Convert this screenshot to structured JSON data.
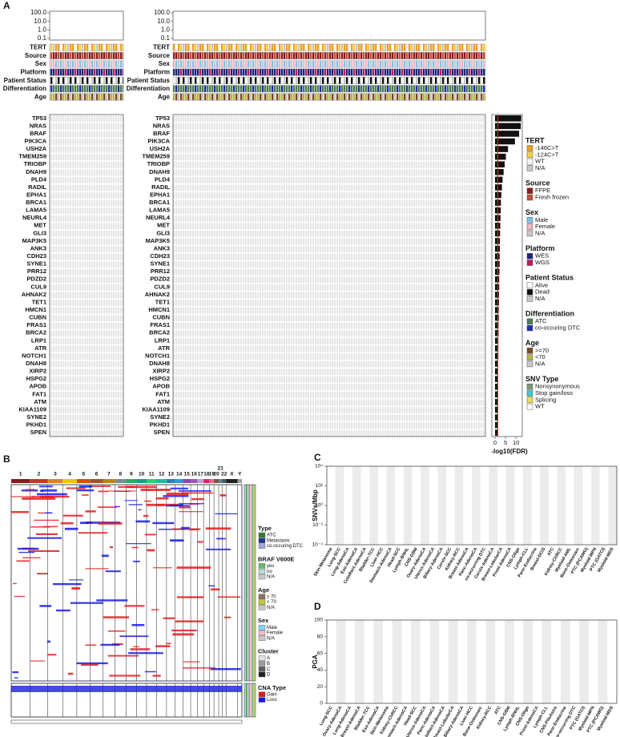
{
  "panel_labels": [
    "A",
    "B",
    "C",
    "D"
  ],
  "panel_a": {
    "top_ylim": [
      0.1,
      100
    ],
    "log_scale": true,
    "top_yticks": [
      {
        "value": 100,
        "label": "100.0"
      },
      {
        "value": 10,
        "label": "10.0"
      },
      {
        "value": 1,
        "label": "1.0"
      },
      {
        "value": 0.1,
        "label": "0.1"
      }
    ],
    "annotation_rows": [
      "TERT",
      "Source",
      "Sex",
      "Platform",
      "Patient Status",
      "Differentiation",
      "Age"
    ],
    "genes": [
      "TP53",
      "NRAS",
      "BRAF",
      "PIK3CA",
      "USH2A",
      "TMEM259",
      "TRIOBP",
      "DNAH9",
      "PLD4",
      "RADIL",
      "EPHA1",
      "BRCA1",
      "LAMA5",
      "NEURL4",
      "MET",
      "GLI3",
      "MAP3K5",
      "ANK3",
      "CDH23",
      "SYNE1",
      "PRR12",
      "PDZD2",
      "CUL9",
      "AHNAK2",
      "TET1",
      "HMCN1",
      "CUBN",
      "FRAS1",
      "BRCA2",
      "LRP1",
      "ATR",
      "NOTCH1",
      "DNAH8",
      "XIRP2",
      "HSPG2",
      "APOB",
      "FAT1",
      "ATM",
      "KIAA1109",
      "SYNE2",
      "PKHD1",
      "SPEN"
    ],
    "fdr": {
      "type": "bar",
      "xlabel": "-log10(FDR)",
      "color": "#111111",
      "threshold_color": "#d62728",
      "threshold": 1.3,
      "xlim": [
        0,
        13
      ],
      "xticks": [
        0,
        5,
        10
      ],
      "values": [
        12.5,
        12.3,
        11.5,
        9.5,
        6.2,
        5.2,
        4.6,
        4.1,
        3.6,
        3.3,
        3.0,
        2.8,
        2.7,
        2.6,
        2.5,
        2.4,
        2.3,
        2.3,
        2.2,
        2.2,
        2.1,
        2.0,
        2.0,
        1.9,
        1.9,
        1.8,
        1.8,
        1.7,
        1.7,
        1.6,
        1.6,
        1.6,
        1.5,
        1.5,
        1.5,
        1.4,
        1.4,
        1.4,
        1.3,
        1.3,
        1.2,
        1.2
      ]
    },
    "legend": [
      {
        "title": "TERT",
        "items": [
          {
            "label": "-146C>T",
            "color": "#f0a020"
          },
          {
            "label": "-124C>T",
            "color": "#f5d04a"
          },
          {
            "label": "WT",
            "color": "#ffffff"
          },
          {
            "label": "N/A",
            "color": "#c8c8c8"
          }
        ]
      },
      {
        "title": "Source",
        "items": [
          {
            "label": "FFPE",
            "color": "#8b1a1a"
          },
          {
            "label": "Fresh frozen",
            "color": "#c0503a"
          }
        ]
      },
      {
        "title": "Sex",
        "items": [
          {
            "label": "Male",
            "color": "#7ec3e6"
          },
          {
            "label": "Female",
            "color": "#f4b6c2"
          },
          {
            "label": "N/A",
            "color": "#c8c8c8"
          }
        ]
      },
      {
        "title": "Platform",
        "items": [
          {
            "label": "WES",
            "color": "#1a237e"
          },
          {
            "label": "WGS",
            "color": "#c2185b"
          }
        ]
      },
      {
        "title": "Patient Status",
        "items": [
          {
            "label": "Alive",
            "color": "#ffffff"
          },
          {
            "label": "Dead",
            "color": "#111111"
          },
          {
            "label": "N/A",
            "color": "#c8c8c8"
          }
        ]
      },
      {
        "title": "Differentiation",
        "items": [
          {
            "label": "ATC",
            "color": "#4e7d4e"
          },
          {
            "label": "co-occuring DTC",
            "color": "#1f2fb0"
          }
        ]
      },
      {
        "title": "Age",
        "items": [
          {
            "label": ">=70",
            "color": "#7a4a22"
          },
          {
            "label": "<70",
            "color": "#b7b34a"
          },
          {
            "label": "N/A",
            "color": "#c8c8c8"
          }
        ]
      },
      {
        "title": "SNV Type",
        "items": [
          {
            "label": "Nonsynonymous",
            "color": "#7a9a7a"
          },
          {
            "label": "Stop gain/loss",
            "color": "#3cc8d8"
          },
          {
            "label": "Splicing",
            "color": "#e8e050"
          },
          {
            "label": "WT",
            "color": "#ffffff"
          }
        ]
      }
    ]
  },
  "panel_b": {
    "chromosomes": [
      "1",
      "2",
      "3",
      "4",
      "5",
      "6",
      "7",
      "8",
      "9",
      "10",
      "11",
      "12",
      "13",
      "14",
      "15",
      "16",
      "17",
      "18",
      "19",
      "20",
      "21",
      "22",
      "X",
      "Y"
    ],
    "legend": [
      {
        "title": "Type",
        "items": [
          {
            "label": "ATC",
            "color": "#2e7d32"
          },
          {
            "label": "Metastasis",
            "color": "#283593"
          },
          {
            "label": "co-occuring DTC",
            "color": "#9fa8da"
          }
        ]
      },
      {
        "title": "BRAF V600E",
        "items": [
          {
            "label": "yes",
            "color": "#66bb6a"
          },
          {
            "label": "no",
            "color": "#b2dfdb"
          },
          {
            "label": "N/A",
            "color": "#c8c8c8"
          }
        ]
      },
      {
        "title": "Age",
        "items": [
          {
            "label": "≥ 70",
            "color": "#8d6e63"
          },
          {
            "label": "< 70",
            "color": "#c0ca33"
          },
          {
            "label": "N/A",
            "color": "#c8c8c8"
          }
        ]
      },
      {
        "title": "Sex",
        "items": [
          {
            "label": "Male",
            "color": "#81d4fa"
          },
          {
            "label": "Female",
            "color": "#f8bbd0"
          },
          {
            "label": "N/A",
            "color": "#c8c8c8"
          }
        ]
      },
      {
        "title": "Cluster",
        "items": [
          {
            "label": "A",
            "color": "#e0e0e0"
          },
          {
            "label": "B",
            "color": "#9e9e9e"
          },
          {
            "label": "C",
            "color": "#616161"
          },
          {
            "label": "D",
            "color": "#212121"
          }
        ]
      },
      {
        "title": "CNA Type",
        "items": [
          {
            "label": "Gain",
            "color": "#e41a1c"
          },
          {
            "label": "Loss",
            "color": "#1a1ae4"
          }
        ]
      }
    ]
  },
  "panel_c": {
    "ylabel": "SNVs/Mbp",
    "log_scale": true,
    "ylim": [
      0.0001,
      10000
    ],
    "yticks": [
      {
        "value": 10000,
        "label": "10⁴"
      },
      {
        "value": 100,
        "label": "10²"
      },
      {
        "value": 1,
        "label": "10⁰"
      },
      {
        "value": 0.01,
        "label": "10⁻²"
      },
      {
        "value": 0.0001,
        "label": "10⁻⁴"
      }
    ],
    "categories": [
      "Skin-Melanoma",
      "Lung-SCC",
      "Lung-AdenoCA",
      "Eso-AdenoCA",
      "ColoRect-AdenoCA",
      "Bladder-TCC",
      "Liver-HCC",
      "Stomach-AdenoCA",
      "Head-SCC",
      "Lymph-BNHL",
      "CNS-GBM",
      "Ovary-AdenoCA",
      "Uterus-AdenoCA",
      "Biliary-AdenoCA",
      "Cervix-SCC",
      "Kidney-RCC",
      "Breast-AdenoCA",
      "Panc-AdenoCA",
      "co-occurring DTC",
      "Cervix-AdenoCA",
      "Breast-LobularCA",
      "Prost-AdenoCA",
      "CNS-Oligo",
      "Lymph-CLL",
      "Panc-Endocrine",
      "Breast-DCIS",
      "ATC",
      "Kidney-ChRCC",
      "Myeloid-AML",
      "Bone-Osteosarc",
      "PTC (PCAWG)",
      "Myeloid-MPN",
      "PTC (GATCI)",
      "Myeloid-MDS"
    ]
  },
  "panel_d": {
    "ylabel": "PGA",
    "ylim": [
      0,
      100
    ],
    "yticks": [
      0,
      20,
      40,
      60,
      80,
      100
    ],
    "categories": [
      "Lung-SCC",
      "Ovary-AdenoCA",
      "Lung-AdenoCA",
      "Breast-AdenoCA",
      "Bladder-TCC",
      "Eso-AdenoCA",
      "Skin-Melanoma",
      "Kidney-ChRCC",
      "Stomach-AdenoCA",
      "Head-SCC",
      "Uterus-AdenoCA",
      "Panc-AdenoCA",
      "ColoRect-AdenoCA",
      "Breast-LobularCA",
      "Biliary-AdenoCA",
      "Liver-HCC",
      "Bone-Osteosarc",
      "Kidney-RCC",
      "ATC",
      "CNS-GBM",
      "Lymph-BNHL",
      "CNS-Oligo",
      "Prost-AdenoCA",
      "Lymph-CLL",
      "CNS-PiloAstro",
      "Panc-Endocrine",
      "co-occurring DTC",
      "PTC (GATCI)",
      "Myeloid-MPN",
      "PTC (PCAWG)",
      "Myeloid-MDS"
    ]
  }
}
